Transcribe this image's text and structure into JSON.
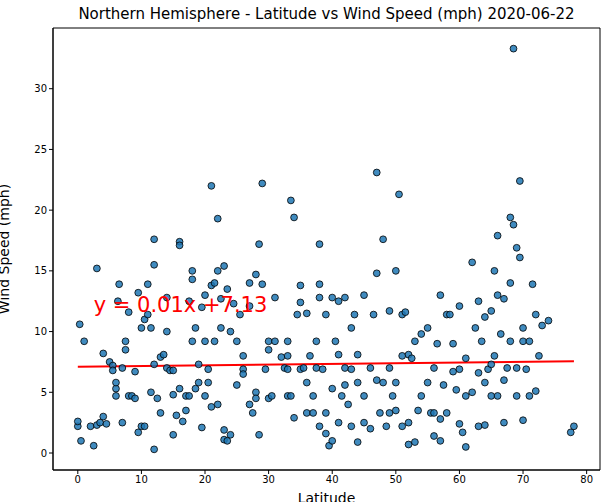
{
  "chart_data": {
    "type": "scatter",
    "title": "Northern Hemisphere - Latitude vs Wind Speed (mph) 2020-06-22",
    "x_label": "Latitude",
    "y_label": "Wind Speed (mph)",
    "color": "#1f77b4",
    "marker": "o",
    "grid": false,
    "x": [
      0,
      0,
      0.3,
      0.5,
      1,
      2,
      2.5,
      3,
      3,
      3.5,
      4,
      4,
      4.5,
      5,
      5.5,
      5.5,
      6,
      6,
      6,
      6.3,
      6.5,
      7,
      7,
      7.5,
      7.5,
      8,
      8,
      8.5,
      9,
      9,
      9.5,
      9.5,
      10,
      10,
      10.5,
      10.5,
      11,
      11,
      11.5,
      11.5,
      12,
      12,
      12,
      12,
      12.5,
      13,
      13,
      13.5,
      14,
      14,
      14,
      14.5,
      15,
      15,
      15,
      15.5,
      16,
      16,
      16,
      16.5,
      17,
      17,
      17.5,
      17.5,
      18,
      18,
      18,
      18.5,
      18.5,
      19,
      19,
      19.5,
      19.5,
      20,
      20,
      20,
      20.5,
      20.5,
      21,
      21,
      21,
      21.5,
      21.5,
      22,
      22,
      22,
      22.5,
      22.5,
      23,
      23,
      23,
      23.5,
      23.5,
      24,
      24,
      24.5,
      25,
      25,
      25.5,
      26,
      26,
      26,
      27,
      27,
      27,
      27.5,
      28,
      28,
      28,
      28.5,
      28.5,
      29,
      29,
      29.5,
      30,
      30,
      30,
      30.5,
      31,
      31,
      32,
      32.5,
      33,
      33,
      33,
      33,
      33.5,
      33.5,
      34,
      34,
      34.5,
      35,
      35,
      35,
      35.5,
      36,
      36,
      36,
      36.5,
      37,
      37,
      37.5,
      37.5,
      38,
      38,
      38,
      38,
      38.5,
      39,
      39,
      39,
      39.5,
      40,
      40,
      40,
      40.5,
      41,
      41,
      41,
      41.5,
      42,
      42,
      42,
      42.5,
      43,
      43,
      43,
      43.5,
      44,
      44,
      44,
      45,
      45,
      45,
      46,
      46,
      46.5,
      47,
      47,
      47,
      47.5,
      48,
      48,
      48.5,
      49,
      49,
      49,
      49.5,
      50,
      50,
      50,
      50.5,
      51,
      51,
      51,
      51.5,
      52,
      52,
      52,
      52.5,
      53,
      53,
      53.5,
      54,
      54,
      55,
      55,
      55.5,
      56,
      56,
      56,
      56.5,
      57,
      57,
      57,
      57.5,
      58,
      58,
      58.5,
      59,
      59,
      59.5,
      60,
      60,
      60,
      60.5,
      61,
      61,
      61,
      62,
      62,
      62.5,
      63,
      63,
      63,
      63.5,
      64,
      64,
      64,
      64.5,
      65,
      65,
      65,
      65.5,
      65.5,
      66,
      66,
      66,
      66.5,
      67,
      67,
      67,
      67.5,
      68,
      68,
      68,
      68.5,
      68.5,
      69,
      69,
      69,
      69.5,
      69.5,
      70,
      70,
      70,
      70.5,
      71,
      71,
      71.5,
      72,
      72,
      72.5,
      73,
      74,
      77.5,
      78
    ],
    "values": [
      2.2,
      2.6,
      10.6,
      1.0,
      9.2,
      2.2,
      0.6,
      15.2,
      2.3,
      2.5,
      3.0,
      8.2,
      2.4,
      7.5,
      7.2,
      6.8,
      4.7,
      5.3,
      5.8,
      12.5,
      13.9,
      2.5,
      7.0,
      9.2,
      8.5,
      4.7,
      11.6,
      4.7,
      4.5,
      6.7,
      1.7,
      13.2,
      2.2,
      10.3,
      11.0,
      2.2,
      11.4,
      13.9,
      10.3,
      5.0,
      0.3,
      15.5,
      17.6,
      7.3,
      4.5,
      7.9,
      3.3,
      8.1,
      7.0,
      12.8,
      10.0,
      6.8,
      1.5,
      4.8,
      6.8,
      3.1,
      5.3,
      17.4,
      17.1,
      2.6,
      3.5,
      4.7,
      4.7,
      12.5,
      15.0,
      14.3,
      9.2,
      5.3,
      10.3,
      5.8,
      7.3,
      2.1,
      12.0,
      4.7,
      9.2,
      13.0,
      5.8,
      6.9,
      13.8,
      22.0,
      3.8,
      9.2,
      14.0,
      19.3,
      4.0,
      15.0,
      10.3,
      12.7,
      1.1,
      15.4,
      1.9,
      1.0,
      13.5,
      10.0,
      1.5,
      12.3,
      9.2,
      5.6,
      11.4,
      6.9,
      6.5,
      8.0,
      14.0,
      12.1,
      4.0,
      3.3,
      5.0,
      4.5,
      14.7,
      1.5,
      17.2,
      13.9,
      22.2,
      6.9,
      9.2,
      8.5,
      4.5,
      4.7,
      12.8,
      9.2,
      7.9,
      7.0,
      4.7,
      6.9,
      9.2,
      8.0,
      4.7,
      20.8,
      19.4,
      2.9,
      11.4,
      12.4,
      13.8,
      6.9,
      7.0,
      3.3,
      11.5,
      5.8,
      8.0,
      3.3,
      4.7,
      9.2,
      7.0,
      2.2,
      17.2,
      13.9,
      12.8,
      6.9,
      3.3,
      11.4,
      1.6,
      0.6,
      1.0,
      12.8,
      5.3,
      9.2,
      12.5,
      2.5,
      8.1,
      4.7,
      5.6,
      12.8,
      7.0,
      4.0,
      2.2,
      6.9,
      10.3,
      11.4,
      0.9,
      8.1,
      5.8,
      2.5,
      4.7,
      13.0,
      2.0,
      7.0,
      11.4,
      14.8,
      23.1,
      6.0,
      3.3,
      17.6,
      5.8,
      2.2,
      3.3,
      11.7,
      7.0,
      4.7,
      3.5,
      15.0,
      5.8,
      21.3,
      11.4,
      2.2,
      8.0,
      11.6,
      0.7,
      8.1,
      2.5,
      7.8,
      0.9,
      9.2,
      3.5,
      4.7,
      9.8,
      10.3,
      5.8,
      3.3,
      1.4,
      3.3,
      7.0,
      9.0,
      2.8,
      13.0,
      1.0,
      5.6,
      11.4,
      3.3,
      11.4,
      6.7,
      9.0,
      5.2,
      2.4,
      12.1,
      6.9,
      1.7,
      0.5,
      7.8,
      4.7,
      15.7,
      5.0,
      10.3,
      6.6,
      2.2,
      12.5,
      9.2,
      2.3,
      5.8,
      11.2,
      6.9,
      4.7,
      11.7,
      7.3,
      15.0,
      8.0,
      17.9,
      13.0,
      4.7,
      9.8,
      2.5,
      6.0,
      12.7,
      7.0,
      19.4,
      9.2,
      14.0,
      33.3,
      18.8,
      16.9,
      7.0,
      4.7,
      22.4,
      16.1,
      10.3,
      2.7,
      9.2,
      6.9,
      9.2,
      4.7,
      13.9,
      11.4,
      5.1,
      8.0,
      10.5,
      10.9,
      1.7,
      2.2
    ],
    "trendline": {
      "x": [
        0,
        78
      ],
      "y": [
        7.1,
        7.55
      ],
      "color": "red"
    },
    "annotations": [
      {
        "text": "y = 0.01x +7.13",
        "x": 2.5,
        "y": 12.2,
        "color": "red"
      }
    ],
    "xlim": [
      -3.9,
      82.1
    ],
    "xticks": [
      0,
      10,
      20,
      30,
      40,
      50,
      60,
      70,
      80
    ],
    "ylim": [
      -1.4,
      35
    ],
    "yticks": [
      0,
      5,
      10,
      15,
      20,
      25,
      30
    ]
  }
}
